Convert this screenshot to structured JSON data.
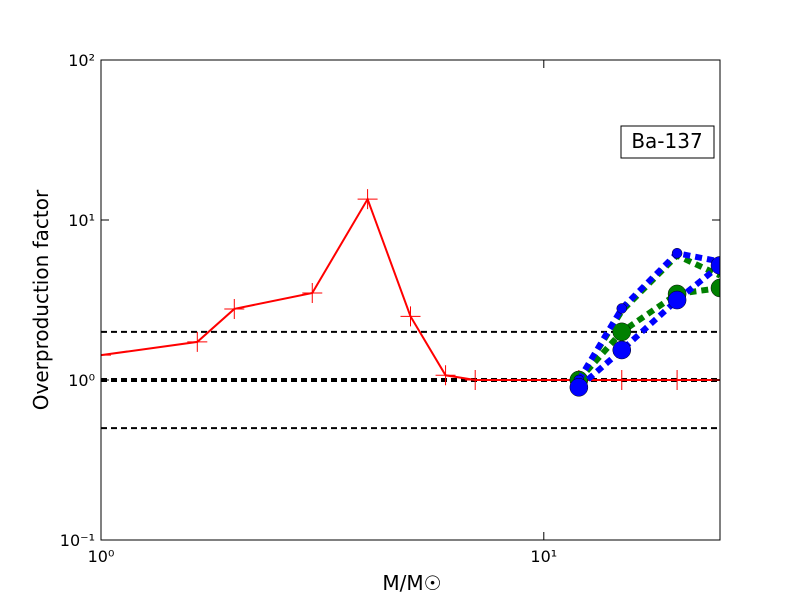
{
  "chart_data": {
    "type": "line",
    "xlabel": "M/M☉",
    "ylabel": "Overproduction factor",
    "annotation": "Ba-137",
    "xscale": "log",
    "yscale": "log",
    "xlim": [
      1,
      25
    ],
    "ylim": [
      0.1,
      100
    ],
    "xticks": [
      {
        "value": 1,
        "label": "10⁰"
      },
      {
        "value": 10,
        "label": "10¹"
      }
    ],
    "yticks": [
      {
        "value": 0.1,
        "label": "10⁻¹"
      },
      {
        "value": 1,
        "label": "10⁰"
      },
      {
        "value": 10,
        "label": "10¹"
      },
      {
        "value": 100,
        "label": "10²"
      }
    ],
    "hlines": [
      2,
      1,
      0.5
    ],
    "series": [
      {
        "color": "#ff0000",
        "line": "solid",
        "marker": "plus",
        "x": [
          1,
          1.65,
          2,
          3,
          4,
          5,
          6,
          7,
          12,
          15,
          20,
          25
        ],
        "values": [
          1.43,
          1.73,
          2.78,
          3.5,
          13.5,
          2.5,
          1.07,
          1.0,
          1.0,
          1.0,
          1.0,
          1.0
        ]
      },
      {
        "color": "#008000",
        "line": "dotted",
        "marker": "circle-large",
        "x": [
          12,
          15,
          20,
          25
        ],
        "values": [
          1.0,
          2.0,
          3.45,
          3.76
        ]
      },
      {
        "color": "#008000",
        "line": "dotted",
        "marker": "none",
        "x": [
          12,
          15,
          20,
          25
        ],
        "values": [
          1.0,
          2.7,
          6.0,
          4.5
        ]
      },
      {
        "color": "#0000ff",
        "line": "dotted",
        "marker": "circle-small",
        "x": [
          12,
          15,
          20,
          25
        ],
        "values": [
          1.0,
          2.8,
          6.2,
          5.5
        ]
      },
      {
        "color": "#0000ff",
        "line": "dotted",
        "marker": "circle-large",
        "x": [
          12,
          15,
          20,
          25
        ],
        "values": [
          0.9,
          1.54,
          3.16,
          5.2
        ]
      }
    ]
  }
}
